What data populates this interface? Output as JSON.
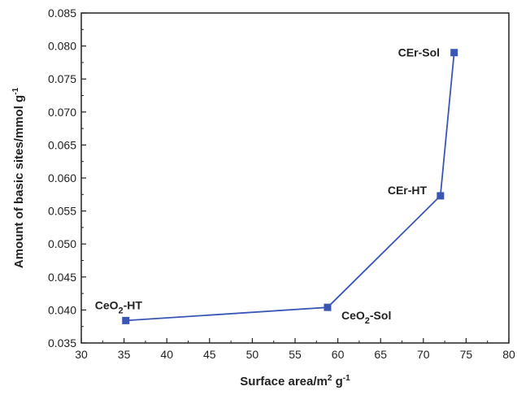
{
  "chart_data": {
    "type": "line",
    "xlabel": "Surface area/m² g⁻¹",
    "ylabel": "Amount of basic sites/mmol g⁻¹",
    "xlim": [
      30,
      80
    ],
    "ylim": [
      0.035,
      0.085
    ],
    "x_ticks": [
      "30",
      "35",
      "40",
      "45",
      "50",
      "55",
      "60",
      "65",
      "70",
      "75",
      "80"
    ],
    "y_ticks": [
      "0.035",
      "0.040",
      "0.045",
      "0.050",
      "0.055",
      "0.060",
      "0.065",
      "0.070",
      "0.075",
      "0.080",
      "0.085"
    ],
    "grid": false,
    "series": [
      {
        "color": "#3a56b5",
        "marker": "square",
        "points": [
          {
            "x": 35.2,
            "y": 0.0384,
            "label": "CeO2-HT"
          },
          {
            "x": 58.8,
            "y": 0.0404,
            "label": "CeO2-Sol"
          },
          {
            "x": 72.0,
            "y": 0.0573,
            "label": "CEr-HT"
          },
          {
            "x": 73.6,
            "y": 0.079,
            "label": "CEr-Sol"
          }
        ]
      }
    ]
  }
}
